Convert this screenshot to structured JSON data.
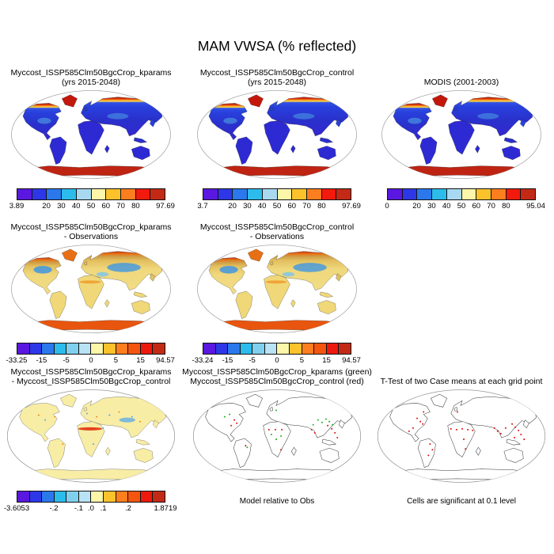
{
  "title": "MAM VWSA (% reflected)",
  "palettes": {
    "abs": [
      "#5a17e0",
      "#2d37e8",
      "#2a78ec",
      "#2cbcec",
      "#a8d9f0",
      "#fbf6a8",
      "#fcc22c",
      "#fc7e1e",
      "#f2190d",
      "#c32a16"
    ],
    "diff": [
      "#5a17e0",
      "#2d37e8",
      "#2a78ec",
      "#2cbcec",
      "#7ed0ee",
      "#b9e2f4",
      "#fbf6a8",
      "#fcc22c",
      "#fc7e1e",
      "#f4550f",
      "#ee190d",
      "#c32a16"
    ]
  },
  "panels": {
    "r1c1": {
      "title1": "Myccost_ISSP585Clm50BgcCrop_kparams",
      "title2": "(yrs 2015-2048)",
      "colorbar": {
        "palette": "abs",
        "ticks": [
          {
            "label": "3.89",
            "pos": 0
          },
          {
            "label": "20",
            "pos": 20
          },
          {
            "label": "30",
            "pos": 30
          },
          {
            "label": "40",
            "pos": 40
          },
          {
            "label": "50",
            "pos": 50
          },
          {
            "label": "60",
            "pos": 60
          },
          {
            "label": "70",
            "pos": 70
          },
          {
            "label": "80",
            "pos": 80
          },
          {
            "label": "97.69",
            "pos": 100
          }
        ]
      }
    },
    "r1c2": {
      "title1": "Myccost_ISSP585Clm50BgcCrop_control",
      "title2": "(yrs 2015-2048)",
      "colorbar": {
        "palette": "abs",
        "ticks": [
          {
            "label": "3.7",
            "pos": 0
          },
          {
            "label": "20",
            "pos": 20
          },
          {
            "label": "30",
            "pos": 30
          },
          {
            "label": "40",
            "pos": 40
          },
          {
            "label": "50",
            "pos": 50
          },
          {
            "label": "60",
            "pos": 60
          },
          {
            "label": "70",
            "pos": 70
          },
          {
            "label": "80",
            "pos": 80
          },
          {
            "label": "97.69",
            "pos": 100
          }
        ]
      }
    },
    "r1c3": {
      "title1": "MODIS (2001-2003)",
      "title2": "",
      "colorbar": {
        "palette": "abs",
        "ticks": [
          {
            "label": "0",
            "pos": 0
          },
          {
            "label": "20",
            "pos": 20
          },
          {
            "label": "30",
            "pos": 30
          },
          {
            "label": "40",
            "pos": 40
          },
          {
            "label": "50",
            "pos": 50
          },
          {
            "label": "60",
            "pos": 60
          },
          {
            "label": "70",
            "pos": 70
          },
          {
            "label": "80",
            "pos": 80
          },
          {
            "label": "95.04",
            "pos": 100
          }
        ]
      }
    },
    "r2c1": {
      "title1": "Myccost_ISSP585Clm50BgcCrop_kparams",
      "title2": "- Observations",
      "colorbar": {
        "palette": "diff",
        "ticks": [
          {
            "label": "-33.25",
            "pos": 0
          },
          {
            "label": "-15",
            "pos": 16.7
          },
          {
            "label": "-5",
            "pos": 33.3
          },
          {
            "label": "0",
            "pos": 50
          },
          {
            "label": "5",
            "pos": 66.7
          },
          {
            "label": "15",
            "pos": 83.3
          },
          {
            "label": "94.57",
            "pos": 100
          }
        ]
      }
    },
    "r2c2": {
      "title1": "Myccost_ISSP585Clm50BgcCrop_control",
      "title2": "- Observations",
      "colorbar": {
        "palette": "diff",
        "ticks": [
          {
            "label": "-33.24",
            "pos": 0
          },
          {
            "label": "-15",
            "pos": 16.7
          },
          {
            "label": "-5",
            "pos": 33.3
          },
          {
            "label": "0",
            "pos": 50
          },
          {
            "label": "5",
            "pos": 66.7
          },
          {
            "label": "15",
            "pos": 83.3
          },
          {
            "label": "94.57",
            "pos": 100
          }
        ]
      }
    },
    "r3c1": {
      "title1": "Myccost_ISSP585Clm50BgcCrop_kparams",
      "title2": "- Myccost_ISSP585Clm50BgcCrop_control",
      "colorbar": {
        "palette": "diff",
        "ticks": [
          {
            "label": "-3.6053",
            "pos": 0
          },
          {
            "label": "-.2",
            "pos": 25
          },
          {
            "label": "-.1",
            "pos": 41.7
          },
          {
            "label": ".0",
            "pos": 50
          },
          {
            "label": ".1",
            "pos": 58.3
          },
          {
            "label": ".2",
            "pos": 75
          },
          {
            "label": "1.8719",
            "pos": 100
          }
        ]
      }
    },
    "r3c2": {
      "title1": "Myccost_ISSP585Clm50BgcCrop_kparams (green)",
      "title2": "Myccost_ISSP585Clm50BgcCrop_control (red)",
      "caption": "Model relative to Obs"
    },
    "r3c3": {
      "title1": "T-Test of two Case means at each grid point",
      "title2": "",
      "caption": "Cells are significant at 0.1 level"
    }
  },
  "chart_data": {
    "type": "heatmap",
    "title": "MAM VWSA (% reflected)",
    "layout": "3 rows of global Robinson-projection maps with labelbars",
    "panels": [
      {
        "title": "Myccost_ISSP585Clm50BgcCrop_kparams (yrs 2015-2048)",
        "min": 3.89,
        "max": 97.69,
        "colorbar_ticks": [
          3.89,
          20,
          30,
          40,
          50,
          60,
          70,
          80,
          97.69
        ]
      },
      {
        "title": "Myccost_ISSP585Clm50BgcCrop_control (yrs 2015-2048)",
        "min": 3.7,
        "max": 97.69,
        "colorbar_ticks": [
          3.7,
          20,
          30,
          40,
          50,
          60,
          70,
          80,
          97.69
        ]
      },
      {
        "title": "MODIS (2001-2003)",
        "min": 0,
        "max": 95.04,
        "colorbar_ticks": [
          0,
          20,
          30,
          40,
          50,
          60,
          70,
          80,
          95.04
        ]
      },
      {
        "title": "Myccost_ISSP585Clm50BgcCrop_kparams - Observations",
        "min": -33.25,
        "max": 94.57,
        "colorbar_ticks": [
          -33.25,
          -15,
          -5,
          0,
          5,
          15,
          94.57
        ]
      },
      {
        "title": "Myccost_ISSP585Clm50BgcCrop_control - Observations",
        "min": -33.24,
        "max": 94.57,
        "colorbar_ticks": [
          -33.24,
          -15,
          -5,
          0,
          5,
          15,
          94.57
        ]
      },
      {
        "title": "Myccost_ISSP585Clm50BgcCrop_kparams - Myccost_ISSP585Clm50BgcCrop_control",
        "min": -3.6053,
        "max": 1.8719,
        "colorbar_ticks": [
          -3.6053,
          -0.2,
          -0.1,
          0,
          0.1,
          0.2,
          1.8719
        ]
      },
      {
        "title": "Myccost_ISSP585Clm50BgcCrop_kparams (green) Myccost_ISSP585Clm50BgcCrop_control (red)",
        "caption": "Model relative to Obs"
      },
      {
        "title": "T-Test of two Case means at each grid point",
        "caption": "Cells are significant at 0.1 level"
      }
    ]
  }
}
